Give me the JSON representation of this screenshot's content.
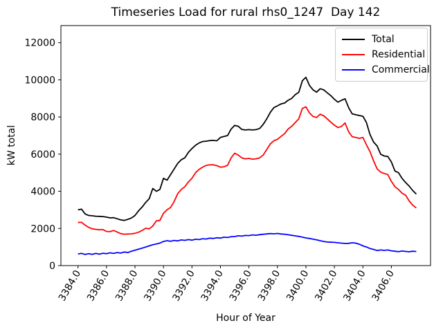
{
  "chart_data": {
    "type": "line",
    "title": "Timeseries Load for rural rhs0_1247  Day 142",
    "xlabel": "Hour of Year",
    "ylabel": "kW total",
    "xlim": [
      3382.8,
      3408.75
    ],
    "ylim": [
      0,
      12920
    ],
    "xticks": [
      3384.0,
      3386.0,
      3388.0,
      3390.0,
      3392.0,
      3394.0,
      3396.0,
      3398.0,
      3400.0,
      3402.0,
      3404.0,
      3406.0
    ],
    "yticks": [
      0,
      2000,
      4000,
      6000,
      8000,
      10000,
      12000
    ],
    "grid": false,
    "legend_position": "upper right",
    "x": [
      3384.0,
      3384.25,
      3384.5,
      3384.75,
      3385.0,
      3385.25,
      3385.5,
      3385.75,
      3386.0,
      3386.25,
      3386.5,
      3386.75,
      3387.0,
      3387.25,
      3387.5,
      3387.75,
      3388.0,
      3388.25,
      3388.5,
      3388.75,
      3389.0,
      3389.25,
      3389.5,
      3389.75,
      3390.0,
      3390.25,
      3390.5,
      3390.75,
      3391.0,
      3391.25,
      3391.5,
      3391.75,
      3392.0,
      3392.25,
      3392.5,
      3392.75,
      3393.0,
      3393.25,
      3393.5,
      3393.75,
      3394.0,
      3394.25,
      3394.5,
      3394.75,
      3395.0,
      3395.25,
      3395.5,
      3395.75,
      3396.0,
      3396.25,
      3396.5,
      3396.75,
      3397.0,
      3397.25,
      3397.5,
      3397.75,
      3398.0,
      3398.25,
      3398.5,
      3398.75,
      3399.0,
      3399.25,
      3399.5,
      3399.75,
      3400.0,
      3400.25,
      3400.5,
      3400.75,
      3401.0,
      3401.25,
      3401.5,
      3401.75,
      3402.0,
      3402.25,
      3402.5,
      3402.75,
      3403.0,
      3403.25,
      3403.5,
      3403.75,
      3404.0,
      3404.25,
      3404.5,
      3404.75,
      3405.0,
      3405.25,
      3405.5,
      3405.75,
      3406.0,
      3406.25,
      3406.5,
      3406.75,
      3407.0,
      3407.25,
      3407.5,
      3407.75
    ],
    "series": [
      {
        "name": "Total",
        "color": "#000000",
        "values": [
          3000,
          3040,
          2780,
          2700,
          2680,
          2660,
          2650,
          2640,
          2610,
          2570,
          2580,
          2520,
          2460,
          2430,
          2490,
          2560,
          2700,
          2950,
          3150,
          3400,
          3600,
          4150,
          4000,
          4100,
          4700,
          4600,
          4900,
          5200,
          5500,
          5700,
          5800,
          6100,
          6300,
          6480,
          6600,
          6680,
          6700,
          6730,
          6740,
          6720,
          6900,
          6950,
          7000,
          7350,
          7550,
          7500,
          7330,
          7300,
          7320,
          7300,
          7320,
          7380,
          7600,
          7900,
          8250,
          8500,
          8600,
          8700,
          8750,
          8900,
          9000,
          9200,
          9330,
          9950,
          10140,
          9700,
          9460,
          9340,
          9520,
          9460,
          9300,
          9150,
          8950,
          8800,
          8900,
          8980,
          8500,
          8170,
          8120,
          8080,
          8040,
          7700,
          7060,
          6650,
          6440,
          5990,
          5900,
          5870,
          5580,
          5090,
          5000,
          4700,
          4470,
          4280,
          4040,
          3850
        ]
      },
      {
        "name": "Residential",
        "color": "#ff0000",
        "values": [
          2320,
          2330,
          2180,
          2060,
          1980,
          1950,
          1930,
          1940,
          1840,
          1830,
          1890,
          1810,
          1720,
          1690,
          1700,
          1710,
          1740,
          1800,
          1890,
          2010,
          1980,
          2130,
          2410,
          2430,
          2820,
          3000,
          3130,
          3450,
          3870,
          4100,
          4250,
          4500,
          4700,
          5000,
          5180,
          5300,
          5400,
          5420,
          5430,
          5380,
          5300,
          5320,
          5400,
          5800,
          6050,
          5950,
          5800,
          5750,
          5770,
          5730,
          5750,
          5800,
          5950,
          6250,
          6550,
          6720,
          6800,
          6950,
          7100,
          7350,
          7500,
          7700,
          7900,
          8460,
          8550,
          8220,
          8030,
          7970,
          8150,
          8060,
          7900,
          7720,
          7560,
          7430,
          7490,
          7680,
          7200,
          6940,
          6900,
          6850,
          6900,
          6500,
          6140,
          5640,
          5210,
          5030,
          4960,
          4900,
          4530,
          4250,
          4100,
          3900,
          3790,
          3480,
          3250,
          3100
        ]
      },
      {
        "name": "Commercial",
        "color": "#0000ff",
        "values": [
          620,
          660,
          600,
          645,
          605,
          655,
          615,
          665,
          640,
          690,
          655,
          705,
          675,
          735,
          705,
          775,
          830,
          885,
          940,
          1000,
          1060,
          1120,
          1160,
          1215,
          1300,
          1340,
          1310,
          1355,
          1330,
          1380,
          1360,
          1400,
          1370,
          1420,
          1400,
          1450,
          1430,
          1480,
          1460,
          1500,
          1480,
          1530,
          1510,
          1555,
          1565,
          1605,
          1585,
          1625,
          1615,
          1655,
          1635,
          1665,
          1685,
          1705,
          1725,
          1710,
          1730,
          1700,
          1690,
          1660,
          1630,
          1600,
          1570,
          1530,
          1490,
          1460,
          1425,
          1390,
          1340,
          1300,
          1270,
          1260,
          1250,
          1230,
          1210,
          1190,
          1200,
          1230,
          1210,
          1150,
          1060,
          1000,
          920,
          870,
          810,
          840,
          820,
          840,
          795,
          775,
          750,
          785,
          765,
          745,
          775,
          760
        ]
      }
    ]
  }
}
